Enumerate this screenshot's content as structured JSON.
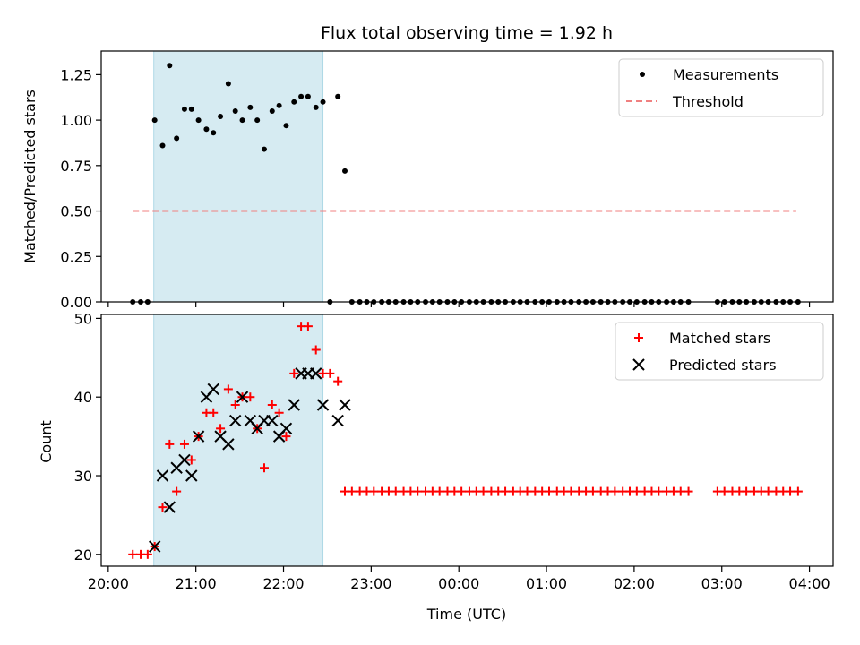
{
  "chart_data": [
    {
      "type": "scatter",
      "title": "Flux total observing time = 1.92 h",
      "xlabel": "",
      "ylabel": "Matched/Predicted stars",
      "ylim": [
        0,
        1.38
      ],
      "yticks": [
        "0.00",
        "0.25",
        "0.50",
        "0.75",
        "1.00",
        "1.25"
      ],
      "shaded_span_hours": [
        20.52,
        22.45
      ],
      "shade_color": "#add8e6",
      "legend": {
        "placement": "top-right",
        "entries": [
          "Measurements",
          "Threshold"
        ]
      },
      "threshold": {
        "name": "Threshold",
        "y": 0.5,
        "x_range_hours": [
          20.28,
          27.85
        ],
        "color": "#f08080",
        "style": "dashed"
      },
      "series": [
        {
          "name": "Measurements",
          "color": "#000000",
          "marker": "dot",
          "x_hours": [
            20.28,
            20.37,
            20.45,
            20.53,
            20.62,
            20.7,
            20.78,
            20.87,
            20.95,
            21.03,
            21.12,
            21.2,
            21.28,
            21.37,
            21.45,
            21.53,
            21.62,
            21.7,
            21.78,
            21.87,
            21.95,
            22.03,
            22.12,
            22.2,
            22.28,
            22.37,
            22.45,
            22.53,
            22.62,
            22.7,
            22.78,
            22.87,
            22.95,
            23.03,
            23.12,
            23.2,
            23.28,
            23.37,
            23.45,
            23.53,
            23.62,
            23.7,
            23.78,
            23.87,
            23.95,
            24.03,
            24.12,
            24.2,
            24.28,
            24.37,
            24.45,
            24.53,
            24.62,
            24.7,
            24.78,
            24.87,
            24.95,
            25.03,
            25.12,
            25.2,
            25.28,
            25.37,
            25.45,
            25.53,
            25.62,
            25.7,
            25.78,
            25.87,
            25.95,
            26.03,
            26.12,
            26.2,
            26.28,
            26.37,
            26.45,
            26.53,
            26.62,
            26.95,
            27.03,
            27.12,
            27.2,
            27.28,
            27.37,
            27.45,
            27.53,
            27.62,
            27.7,
            27.78,
            27.87
          ],
          "y": [
            0,
            0,
            0,
            1.0,
            0.86,
            1.3,
            0.9,
            1.06,
            1.06,
            1.0,
            0.95,
            0.93,
            1.02,
            1.2,
            1.05,
            1.0,
            1.07,
            1.0,
            0.84,
            1.05,
            1.08,
            0.97,
            1.1,
            1.13,
            1.13,
            1.07,
            1.1,
            0,
            1.13,
            0.72,
            0,
            0,
            0,
            0,
            0,
            0,
            0,
            0,
            0,
            0,
            0,
            0,
            0,
            0,
            0,
            0,
            0,
            0,
            0,
            0,
            0,
            0,
            0,
            0,
            0,
            0,
            0,
            0,
            0,
            0,
            0,
            0,
            0,
            0,
            0,
            0,
            0,
            0,
            0,
            0,
            0,
            0,
            0,
            0,
            0,
            0,
            0,
            0,
            0,
            0,
            0,
            0,
            0,
            0,
            0,
            0,
            0,
            0,
            0
          ]
        }
      ]
    },
    {
      "type": "scatter",
      "title": "",
      "xlabel": "Time (UTC)",
      "ylabel": "Count",
      "ylim": [
        18.5,
        50.5
      ],
      "yticks": [
        "20",
        "30",
        "40",
        "50"
      ],
      "xticks": [
        "20:00",
        "21:00",
        "22:00",
        "23:00",
        "00:00",
        "01:00",
        "02:00",
        "03:00",
        "04:00"
      ],
      "xtick_hours": [
        20,
        21,
        22,
        23,
        24,
        25,
        26,
        27,
        28
      ],
      "x_range_hours": [
        19.92,
        28.27
      ],
      "shaded_span_hours": [
        20.52,
        22.45
      ],
      "shade_color": "#add8e6",
      "legend": {
        "placement": "top-right",
        "entries": [
          "Matched stars",
          "Predicted stars"
        ]
      },
      "series": [
        {
          "name": "Matched stars",
          "color": "#ff0000",
          "marker": "plus",
          "x_hours": [
            20.28,
            20.37,
            20.45,
            20.53,
            20.62,
            20.7,
            20.78,
            20.87,
            20.95,
            21.03,
            21.12,
            21.2,
            21.28,
            21.37,
            21.45,
            21.53,
            21.62,
            21.7,
            21.78,
            21.87,
            21.95,
            22.03,
            22.12,
            22.2,
            22.28,
            22.37,
            22.45,
            22.53,
            22.62,
            22.7,
            22.78,
            22.87,
            22.95,
            23.03,
            23.12,
            23.2,
            23.28,
            23.37,
            23.45,
            23.53,
            23.62,
            23.7,
            23.78,
            23.87,
            23.95,
            24.03,
            24.12,
            24.2,
            24.28,
            24.37,
            24.45,
            24.53,
            24.62,
            24.7,
            24.78,
            24.87,
            24.95,
            25.03,
            25.12,
            25.2,
            25.28,
            25.37,
            25.45,
            25.53,
            25.62,
            25.7,
            25.78,
            25.87,
            25.95,
            26.03,
            26.12,
            26.2,
            26.28,
            26.37,
            26.45,
            26.53,
            26.62,
            26.95,
            27.03,
            27.12,
            27.2,
            27.28,
            27.37,
            27.45,
            27.53,
            27.62,
            27.7,
            27.78,
            27.87
          ],
          "y": [
            20,
            20,
            20,
            21,
            26,
            34,
            28,
            34,
            32,
            35,
            38,
            38,
            36,
            41,
            39,
            40,
            40,
            36,
            31,
            39,
            38,
            35,
            43,
            49,
            49,
            46,
            43,
            43,
            42,
            28,
            28,
            28,
            28,
            28,
            28,
            28,
            28,
            28,
            28,
            28,
            28,
            28,
            28,
            28,
            28,
            28,
            28,
            28,
            28,
            28,
            28,
            28,
            28,
            28,
            28,
            28,
            28,
            28,
            28,
            28,
            28,
            28,
            28,
            28,
            28,
            28,
            28,
            28,
            28,
            28,
            28,
            28,
            28,
            28,
            28,
            28,
            28,
            28,
            28,
            28,
            28,
            28,
            28,
            28,
            28,
            28,
            28,
            28,
            28
          ]
        },
        {
          "name": "Predicted stars",
          "color": "#000000",
          "marker": "x",
          "x_hours": [
            20.53,
            20.62,
            20.7,
            20.78,
            20.87,
            20.95,
            21.03,
            21.12,
            21.2,
            21.28,
            21.37,
            21.45,
            21.53,
            21.62,
            21.7,
            21.78,
            21.87,
            21.95,
            22.03,
            22.12,
            22.2,
            22.28,
            22.37,
            22.45,
            22.62,
            22.7
          ],
          "y": [
            21,
            30,
            26,
            31,
            32,
            30,
            35,
            40,
            41,
            35,
            34,
            37,
            40,
            37,
            36,
            37,
            37,
            35,
            36,
            39,
            43,
            43,
            43,
            39,
            37,
            39
          ]
        }
      ]
    }
  ]
}
